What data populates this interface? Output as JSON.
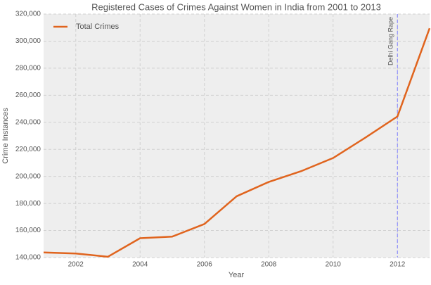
{
  "chart_data": {
    "type": "line",
    "title": "Registered Cases of Crimes Against Women in India from 2001 to 2013",
    "xlabel": "Year",
    "ylabel": "Crime Instances",
    "x": [
      2001,
      2002,
      2003,
      2004,
      2005,
      2006,
      2007,
      2008,
      2009,
      2010,
      2011,
      2012,
      2013
    ],
    "series": [
      {
        "name": "Total Crimes",
        "color": "#e0641e",
        "values": [
          143800,
          143000,
          140600,
          154300,
          155500,
          164800,
          185300,
          195900,
          203800,
          213600,
          228600,
          244300,
          309500
        ]
      }
    ],
    "xlim": [
      2001,
      2013
    ],
    "ylim": [
      140000,
      320000
    ],
    "xticks": [
      2002,
      2004,
      2006,
      2008,
      2010,
      2012
    ],
    "yticks": [
      {
        "value": 140000,
        "label": "140,000"
      },
      {
        "value": 160000,
        "label": "160,000"
      },
      {
        "value": 180000,
        "label": "180,000"
      },
      {
        "value": 200000,
        "label": "200,000"
      },
      {
        "value": 220000,
        "label": "220,000"
      },
      {
        "value": 240000,
        "label": "240,000"
      },
      {
        "value": 260000,
        "label": "260,000"
      },
      {
        "value": 280000,
        "label": "280,000"
      },
      {
        "value": 300000,
        "label": "300,000"
      },
      {
        "value": 320000,
        "label": "320,000"
      }
    ],
    "grid": true,
    "legend": "upper left",
    "annotations": [
      {
        "x": 2012,
        "text": "Delhi Gang Rape",
        "color": "#8080ff"
      }
    ]
  }
}
